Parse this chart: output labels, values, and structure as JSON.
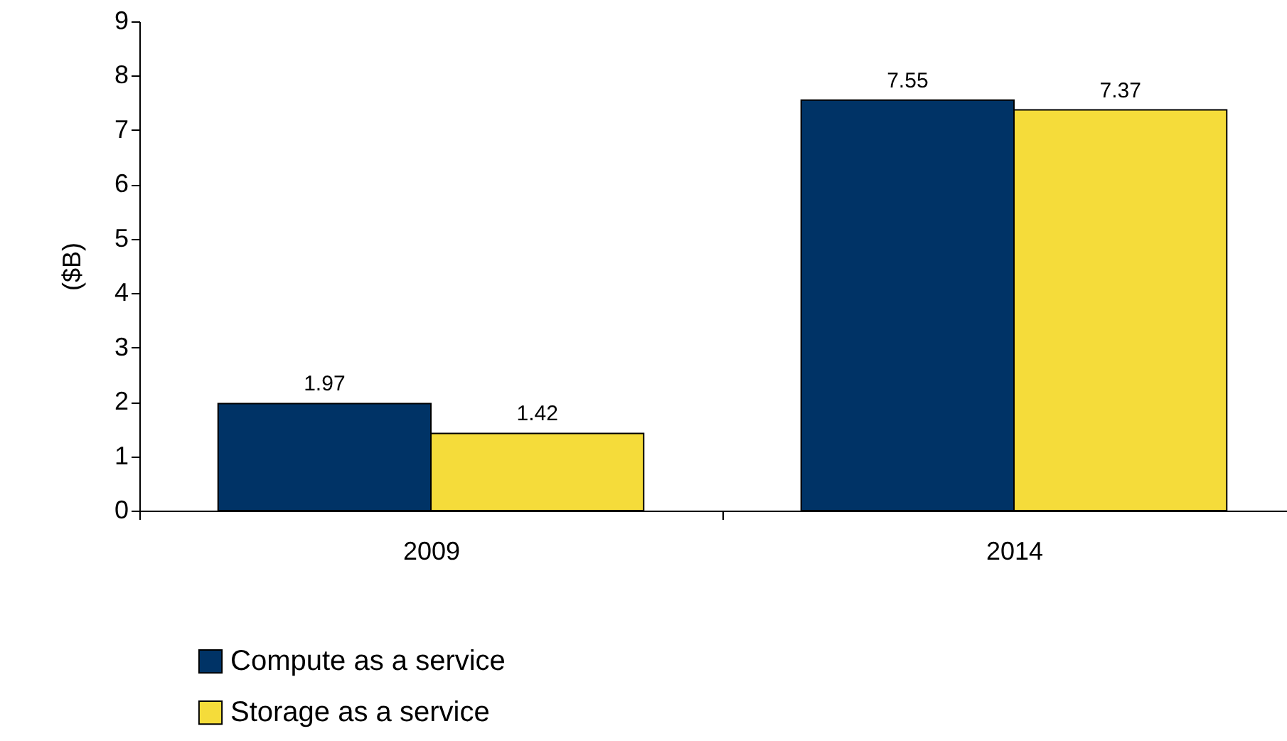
{
  "chart_data": {
    "type": "bar",
    "ylabel": "($B)",
    "categories": [
      "2009",
      "2014"
    ],
    "series": [
      {
        "name": "Compute as a service",
        "color": "#003366",
        "values": [
          1.97,
          7.55
        ]
      },
      {
        "name": "Storage as a service",
        "color": "#f5dc3a",
        "values": [
          1.42,
          7.37
        ]
      }
    ],
    "ylim": [
      0,
      9
    ],
    "yticks": [
      0,
      1,
      2,
      3,
      4,
      5,
      6,
      7,
      8,
      9
    ],
    "data_labels": true,
    "grid": false,
    "legend": "bottom left"
  }
}
